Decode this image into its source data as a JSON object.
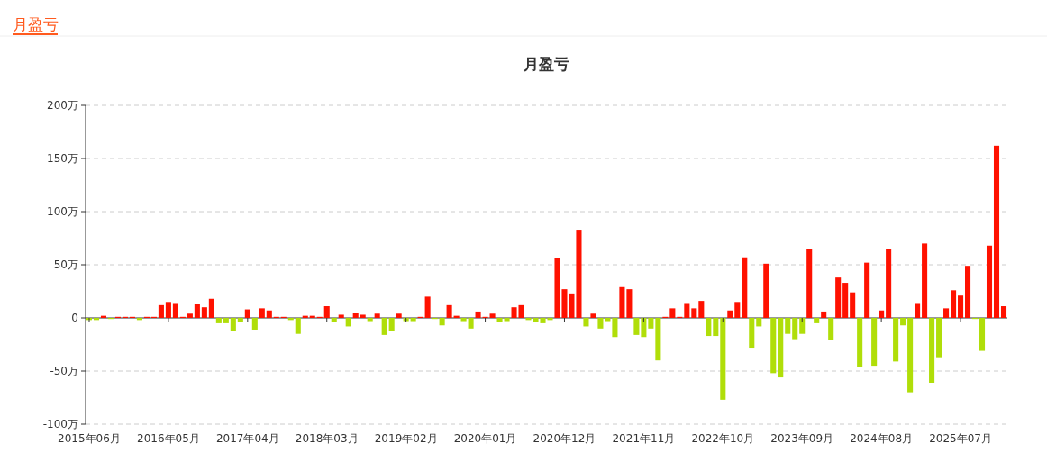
{
  "chart_data": {
    "type": "bar",
    "title": "月盈亏",
    "annotations": [
      "月盈亏"
    ],
    "categories": [
      "2015年06月",
      null,
      null,
      null,
      null,
      null,
      null,
      null,
      null,
      null,
      null,
      "2016年05月",
      null,
      null,
      null,
      null,
      null,
      null,
      null,
      null,
      null,
      null,
      "2017年04月",
      null,
      null,
      null,
      null,
      null,
      null,
      null,
      null,
      null,
      null,
      "2018年03月",
      null,
      null,
      null,
      null,
      null,
      null,
      null,
      null,
      null,
      null,
      "2019年02月",
      null,
      null,
      null,
      null,
      null,
      null,
      null,
      null,
      null,
      null,
      "2020年01月",
      null,
      null,
      null,
      null,
      null,
      null,
      null,
      null,
      null,
      null,
      "2020年12月",
      null,
      null,
      null,
      null,
      null,
      null,
      null,
      null,
      null,
      null,
      "2021年11月",
      null,
      null,
      null,
      null,
      null,
      null,
      null,
      null,
      null,
      null,
      "2022年10月",
      null,
      null,
      null,
      null,
      null,
      null,
      null,
      null,
      null,
      null,
      "2023年09月",
      null,
      null,
      null,
      null,
      null,
      null,
      null,
      null,
      null,
      null,
      "2024年08月",
      null,
      null,
      null,
      null,
      null,
      null,
      null,
      null,
      null,
      null,
      "2025年07月",
      null,
      null,
      null,
      null,
      null,
      null
    ],
    "values": [
      -2,
      -2,
      2,
      -1,
      1,
      1,
      1,
      -2,
      1,
      1,
      12,
      15,
      14,
      1,
      4,
      13,
      10,
      18,
      -5,
      -5,
      -12,
      -4,
      8,
      -11,
      9,
      7,
      1,
      1,
      -2,
      -15,
      2,
      2,
      1,
      11,
      -4,
      3,
      -8,
      5,
      3,
      -3,
      4,
      -16,
      -12,
      4,
      -3,
      -3,
      1,
      20,
      -1,
      -7,
      12,
      2,
      -3,
      -10,
      6,
      1,
      4,
      -4,
      -3,
      10,
      12,
      -2,
      -4,
      -5,
      -2,
      56,
      27,
      23,
      83,
      -8,
      4,
      -10,
      -3,
      -18,
      29,
      27,
      -16,
      -18,
      -10,
      -40,
      1,
      9,
      1,
      14,
      9,
      16,
      -17,
      -17,
      -77,
      7,
      15,
      57,
      -28,
      -8,
      51,
      -52,
      -56,
      -15,
      -20,
      -15,
      65,
      -5,
      6,
      -21,
      38,
      33,
      24,
      -46,
      52,
      -45,
      7,
      65,
      -41,
      -7,
      -70,
      14,
      70,
      -61,
      -37,
      9,
      26,
      21,
      49,
      -1,
      -31,
      68,
      162,
      11
    ],
    "colors": [
      "#b0de09",
      "#b0de09",
      "#ff1100",
      "#b0de09",
      "#ff1100",
      "#ff1100",
      "#ff1100",
      "#b0de09",
      "#ff1100",
      "#ff1100",
      "#ff1100",
      "#ff1100",
      "#ff1100",
      "#ff1100",
      "#ff1100",
      "#ff1100",
      "#ff1100",
      "#ff1100",
      "#b0de09",
      "#b0de09",
      "#b0de09",
      "#b0de09",
      "#ff1100",
      "#b0de09",
      "#ff1100",
      "#ff1100",
      "#ff1100",
      "#ff1100",
      "#b0de09",
      "#b0de09",
      "#ff1100",
      "#ff1100",
      "#ff1100",
      "#ff1100",
      "#b0de09",
      "#ff1100",
      "#b0de09",
      "#ff1100",
      "#ff1100",
      "#b0de09",
      "#ff1100",
      "#b0de09",
      "#b0de09",
      "#ff1100",
      "#b0de09",
      "#b0de09",
      "#ff1100",
      "#ff1100",
      "#b0de09",
      "#b0de09",
      "#ff1100",
      "#ff1100",
      "#b0de09",
      "#b0de09",
      "#ff1100",
      "#ff1100",
      "#ff1100",
      "#b0de09",
      "#b0de09",
      "#ff1100",
      "#ff1100",
      "#b0de09",
      "#b0de09",
      "#b0de09",
      "#b0de09",
      "#ff1100",
      "#ff1100",
      "#ff1100",
      "#ff1100",
      "#b0de09",
      "#ff1100",
      "#b0de09",
      "#b0de09",
      "#b0de09",
      "#ff1100",
      "#ff1100",
      "#b0de09",
      "#b0de09",
      "#b0de09",
      "#b0de09",
      "#ff1100",
      "#ff1100",
      "#ff1100",
      "#ff1100",
      "#ff1100",
      "#ff1100",
      "#b0de09",
      "#b0de09",
      "#b0de09",
      "#ff1100",
      "#ff1100",
      "#ff1100",
      "#b0de09",
      "#b0de09",
      "#ff1100",
      "#b0de09",
      "#b0de09",
      "#b0de09",
      "#b0de09",
      "#b0de09",
      "#ff1100",
      "#b0de09",
      "#ff1100",
      "#b0de09",
      "#ff1100",
      "#ff1100",
      "#ff1100",
      "#b0de09",
      "#ff1100",
      "#b0de09",
      "#ff1100",
      "#ff1100",
      "#b0de09",
      "#b0de09",
      "#b0de09",
      "#ff1100",
      "#ff1100",
      "#b0de09",
      "#b0de09",
      "#ff1100",
      "#ff1100",
      "#ff1100",
      "#ff1100",
      "#b0de09",
      "#b0de09",
      "#ff1100",
      "#ff1100",
      "#ff1100"
    ],
    "ylim": [
      -100,
      200
    ],
    "yticks": [
      {
        "value": -100,
        "label": "-100万"
      },
      {
        "value": -50,
        "label": "-50万"
      },
      {
        "value": 0,
        "label": "0"
      },
      {
        "value": 50,
        "label": "50万"
      },
      {
        "value": 100,
        "label": "100万"
      },
      {
        "value": 150,
        "label": "150万"
      },
      {
        "value": 200,
        "label": "200万"
      }
    ],
    "grid": "y"
  }
}
